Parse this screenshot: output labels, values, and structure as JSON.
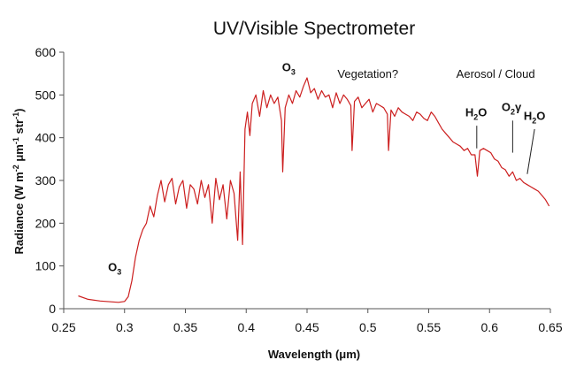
{
  "chart_data": {
    "type": "line",
    "title": "UV/Visible Spectrometer",
    "xlabel": "Wavelength (μm)",
    "ylabel": {
      "prefix": "Radiance (W m",
      "exp1": "-2",
      "mid1": " μm",
      "exp2": "-1",
      "mid2": " str",
      "exp3": "-1",
      "suffix": ")"
    },
    "xlim": [
      0.25,
      0.65
    ],
    "ylim": [
      0,
      600
    ],
    "x_ticks": [
      "0.25",
      "0.3",
      "0.35",
      "0.4",
      "0.45",
      "0.5",
      "0.55",
      "0.6",
      "0.65"
    ],
    "y_ticks": [
      "0",
      "100",
      "200",
      "300",
      "400",
      "500",
      "600"
    ],
    "grid": false,
    "series": [
      {
        "color": "#cc1f1f",
        "x": [
          0.262,
          0.27,
          0.28,
          0.29,
          0.295,
          0.3,
          0.303,
          0.306,
          0.309,
          0.312,
          0.315,
          0.318,
          0.321,
          0.324,
          0.327,
          0.33,
          0.333,
          0.336,
          0.339,
          0.342,
          0.345,
          0.348,
          0.351,
          0.354,
          0.357,
          0.36,
          0.363,
          0.366,
          0.369,
          0.372,
          0.375,
          0.378,
          0.381,
          0.384,
          0.387,
          0.39,
          0.393,
          0.395,
          0.397,
          0.399,
          0.401,
          0.403,
          0.405,
          0.408,
          0.411,
          0.414,
          0.417,
          0.42,
          0.423,
          0.426,
          0.429,
          0.43,
          0.432,
          0.435,
          0.438,
          0.441,
          0.444,
          0.447,
          0.45,
          0.453,
          0.456,
          0.459,
          0.462,
          0.465,
          0.468,
          0.471,
          0.474,
          0.477,
          0.48,
          0.483,
          0.486,
          0.487,
          0.489,
          0.492,
          0.495,
          0.498,
          0.501,
          0.504,
          0.507,
          0.51,
          0.513,
          0.516,
          0.517,
          0.519,
          0.522,
          0.525,
          0.528,
          0.531,
          0.534,
          0.537,
          0.54,
          0.543,
          0.546,
          0.549,
          0.552,
          0.555,
          0.558,
          0.561,
          0.564,
          0.567,
          0.57,
          0.573,
          0.576,
          0.579,
          0.582,
          0.585,
          0.588,
          0.59,
          0.592,
          0.595,
          0.598,
          0.601,
          0.604,
          0.607,
          0.61,
          0.613,
          0.616,
          0.619,
          0.622,
          0.625,
          0.628,
          0.631,
          0.634,
          0.637,
          0.64,
          0.643,
          0.646,
          0.649
        ],
        "y": [
          30,
          22,
          18,
          16,
          15,
          17,
          28,
          65,
          120,
          160,
          185,
          200,
          240,
          215,
          265,
          300,
          250,
          290,
          305,
          245,
          285,
          300,
          235,
          290,
          280,
          245,
          300,
          260,
          290,
          200,
          305,
          255,
          290,
          210,
          300,
          270,
          160,
          320,
          150,
          420,
          460,
          405,
          480,
          500,
          450,
          510,
          470,
          500,
          480,
          495,
          440,
          320,
          470,
          500,
          480,
          510,
          495,
          520,
          540,
          505,
          515,
          490,
          510,
          495,
          500,
          470,
          505,
          480,
          500,
          490,
          475,
          370,
          485,
          495,
          470,
          480,
          490,
          460,
          480,
          475,
          470,
          455,
          370,
          465,
          450,
          470,
          460,
          455,
          450,
          440,
          460,
          455,
          445,
          440,
          460,
          450,
          435,
          420,
          410,
          400,
          390,
          385,
          380,
          370,
          375,
          360,
          360,
          310,
          370,
          375,
          370,
          365,
          350,
          345,
          330,
          325,
          310,
          320,
          300,
          305,
          295,
          290,
          285,
          280,
          275,
          265,
          255,
          240
        ]
      }
    ],
    "annotations": [
      {
        "text": "Vegetation?",
        "x": 0.5,
        "y": 540,
        "style": "plain"
      },
      {
        "text": "Aerosol / Cloud",
        "x": 0.605,
        "y": 540,
        "style": "plain"
      }
    ],
    "formula_labels": [
      {
        "base": "O",
        "sub": "3",
        "tail": "",
        "x": 0.292,
        "y": 88
      },
      {
        "base": "O",
        "sub": "3",
        "tail": "",
        "x": 0.435,
        "y": 556
      },
      {
        "base": "H",
        "sub": "2",
        "tail": "O",
        "x": 0.589,
        "y": 450
      },
      {
        "base": "O",
        "sub": "2",
        "tail": "γ",
        "x": 0.618,
        "y": 462
      },
      {
        "base": "H",
        "sub": "2",
        "tail": "O",
        "x": 0.637,
        "y": 442
      }
    ],
    "pointer_lines": [
      {
        "x1": 0.5895,
        "y1": 428,
        "x2": 0.5895,
        "y2": 375
      },
      {
        "x1": 0.619,
        "y1": 440,
        "x2": 0.619,
        "y2": 365
      },
      {
        "x1": 0.637,
        "y1": 420,
        "x2": 0.631,
        "y2": 315
      }
    ]
  }
}
